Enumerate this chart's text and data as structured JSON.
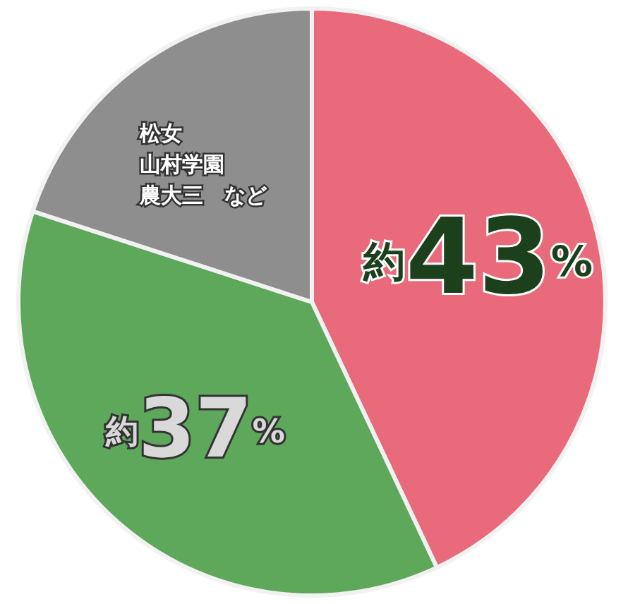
{
  "chart_data": {
    "type": "pie",
    "categories": [
      null,
      null,
      "松女山村学園農大三　など"
    ],
    "values": [
      43,
      37,
      20
    ],
    "colors": [
      "#e96a7b",
      "#5ea85c",
      "#8e8e8e"
    ],
    "value_labels": [
      "約43%",
      "約37%",
      null
    ]
  }
}
